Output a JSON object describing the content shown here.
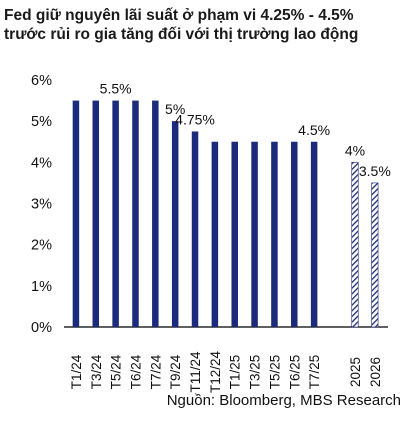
{
  "title_lines": [
    "Fed giữ nguyên lãi suất ở phạm vi 4.25% - 4.5%",
    "trước rủi ro gia tăng đối với thị trường lao động"
  ],
  "source": "Nguồn: Bloomberg, MBS Research",
  "colors": {
    "bar": "#1b2a7a",
    "forecast_bar": "#1b2a7a",
    "axis": "#000000",
    "text": "#111111"
  },
  "chart_data": {
    "type": "bar",
    "categories": [
      "T1/24",
      "T3/24",
      "T5/24",
      "T6/24",
      "T7/24",
      "T9/24",
      "T11/24",
      "T12/24",
      "T1/25",
      "T3/25",
      "T5/25",
      "T6/25",
      "T7/25",
      "2025",
      "2026"
    ],
    "values": [
      5.5,
      5.5,
      5.5,
      5.5,
      5.5,
      5.0,
      4.75,
      4.5,
      4.5,
      4.5,
      4.5,
      4.5,
      4.5,
      4.0,
      3.5
    ],
    "forecast": [
      false,
      false,
      false,
      false,
      false,
      false,
      false,
      false,
      false,
      false,
      false,
      false,
      false,
      true,
      true
    ],
    "data_labels": [
      {
        "index": 2,
        "text": "5.5%"
      },
      {
        "index": 5,
        "text": "5%"
      },
      {
        "index": 6,
        "text": "4.75%"
      },
      {
        "index": 12,
        "text": "4.5%"
      },
      {
        "index": 13,
        "text": "4%"
      },
      {
        "index": 14,
        "text": "3.5%"
      }
    ],
    "yticks": [
      "0%",
      "1%",
      "2%",
      "3%",
      "4%",
      "5%",
      "6%"
    ],
    "ylim": [
      0,
      6
    ],
    "grid": false,
    "legend": "none"
  }
}
